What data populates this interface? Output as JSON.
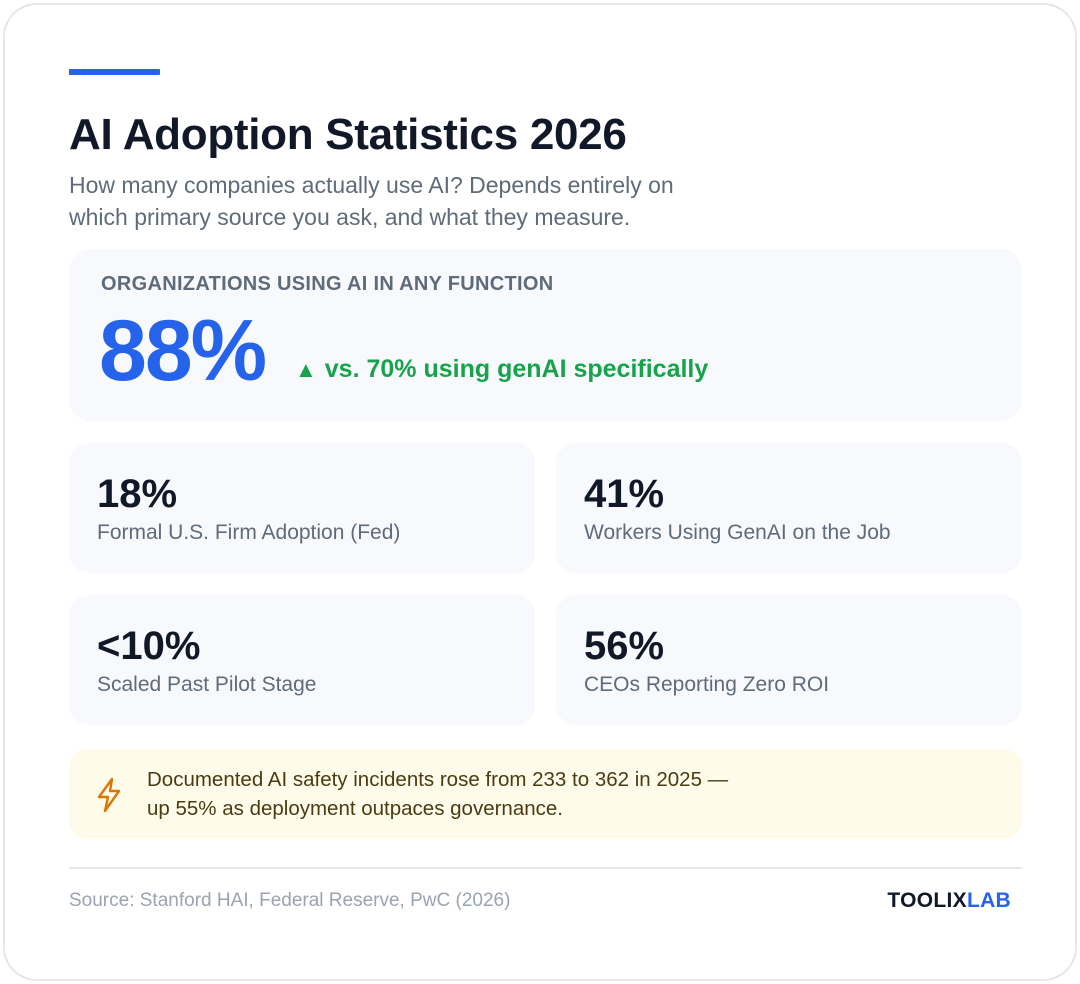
{
  "header": {
    "title": "AI Adoption Statistics 2026",
    "subtitle": "How many companies actually use AI? Depends entirely on which primary source you ask, and what they measure.",
    "accent_color": "#2563eb"
  },
  "hero": {
    "label": "ORGANIZATIONS USING AI IN ANY FUNCTION",
    "value": "88%",
    "note_icon": "triangle-up-icon",
    "note_arrow": "▲",
    "note": "vs. 70% using genAI specifically",
    "value_color": "#2563eb",
    "note_color": "#16a34a"
  },
  "stats": [
    {
      "value": "18%",
      "label": "Formal U.S. Firm Adoption (Fed)"
    },
    {
      "value": "41%",
      "label": "Workers Using GenAI on the Job"
    },
    {
      "value": "<10%",
      "label": "Scaled Past Pilot Stage"
    },
    {
      "value": "56%",
      "label": "CEOs Reporting Zero ROI"
    }
  ],
  "alert": {
    "icon": "lightning-bolt-icon",
    "text": "Documented AI safety incidents rose from 233 to 362 in 2025 — up 55% as deployment outpaces governance.",
    "background": "#fefbea",
    "icon_color": "#d97706"
  },
  "footer": {
    "source": "Source: Stanford HAI, Federal Reserve, PwC (2026)",
    "brand_part1": "TOOLIX",
    "brand_part2": "LAB"
  }
}
